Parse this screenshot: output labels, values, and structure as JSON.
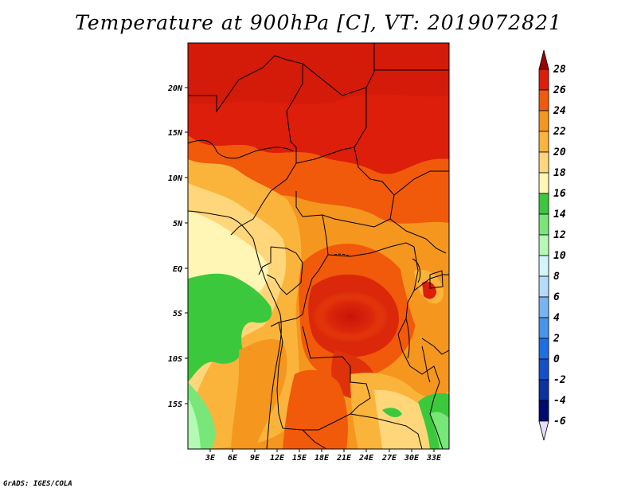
{
  "title": "Temperature at 900hPa [C], VT: 2019072821",
  "credit": "GrADS: IGES/COLA",
  "map": {
    "lat_ticks": [
      "20N",
      "15N",
      "10N",
      "5N",
      "EQ",
      "5S",
      "10S",
      "15S"
    ],
    "lon_ticks": [
      "3E",
      "6E",
      "9E",
      "12E",
      "15E",
      "18E",
      "21E",
      "24E",
      "27E",
      "30E",
      "33E"
    ]
  },
  "colorbar": {
    "levels": [
      "28",
      "26",
      "24",
      "22",
      "20",
      "18",
      "16",
      "14",
      "12",
      "10",
      "8",
      "6",
      "4",
      "2",
      "0",
      "-2",
      "-4",
      "-6"
    ],
    "colors": [
      "#a00000",
      "#dc1e0a",
      "#f05a0a",
      "#f5961e",
      "#fab43c",
      "#ffd77a",
      "#fff5b4",
      "#3cc83c",
      "#78e678",
      "#b4fab4",
      "#d2f5fa",
      "#b4dcfa",
      "#78b4f0",
      "#4696eb",
      "#1e6ee6",
      "#1450c8",
      "#0a32a0",
      "#000a6e",
      "#e6dcff"
    ]
  }
}
